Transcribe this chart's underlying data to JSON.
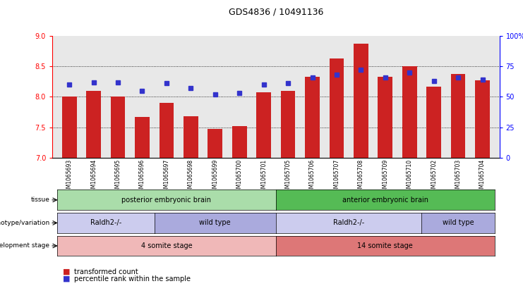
{
  "title": "GDS4836 / 10491136",
  "samples": [
    "GSM1065693",
    "GSM1065694",
    "GSM1065695",
    "GSM1065696",
    "GSM1065697",
    "GSM1065698",
    "GSM1065699",
    "GSM1065700",
    "GSM1065701",
    "GSM1065705",
    "GSM1065706",
    "GSM1065707",
    "GSM1065708",
    "GSM1065709",
    "GSM1065710",
    "GSM1065702",
    "GSM1065703",
    "GSM1065704"
  ],
  "bar_values": [
    8.0,
    8.1,
    8.0,
    7.67,
    7.9,
    7.68,
    7.48,
    7.52,
    8.08,
    8.1,
    8.33,
    8.63,
    8.87,
    8.33,
    8.5,
    8.17,
    8.37,
    8.27
  ],
  "percentile_values": [
    60,
    62,
    62,
    55,
    61,
    57,
    52,
    53,
    60,
    61,
    66,
    68,
    72,
    66,
    70,
    63,
    66,
    64
  ],
  "ylim_left": [
    7,
    9
  ],
  "ylim_right": [
    0,
    100
  ],
  "yticks_left": [
    7,
    7.5,
    8,
    8.5,
    9
  ],
  "yticks_right": [
    0,
    25,
    50,
    75,
    100
  ],
  "bar_color": "#cc2222",
  "dot_color": "#3333cc",
  "bar_bottom": 7.0,
  "tissue_groups": [
    {
      "label": "posterior embryonic brain",
      "start": 0,
      "end": 9,
      "color": "#aaddaa"
    },
    {
      "label": "anterior embryonic brain",
      "start": 9,
      "end": 18,
      "color": "#55bb55"
    }
  ],
  "genotype_groups": [
    {
      "label": "Raldh2-/-",
      "start": 0,
      "end": 4,
      "color": "#ccccee"
    },
    {
      "label": "wild type",
      "start": 4,
      "end": 9,
      "color": "#aaaadd"
    },
    {
      "label": "Raldh2-/-",
      "start": 9,
      "end": 15,
      "color": "#ccccee"
    },
    {
      "label": "wild type",
      "start": 15,
      "end": 18,
      "color": "#aaaadd"
    }
  ],
  "stage_groups": [
    {
      "label": "4 somite stage",
      "start": 0,
      "end": 9,
      "color": "#f0b8b8"
    },
    {
      "label": "14 somite stage",
      "start": 9,
      "end": 18,
      "color": "#dd7777"
    }
  ],
  "row_labels": [
    "tissue",
    "genotype/variation",
    "development stage"
  ],
  "legend_items": [
    {
      "color": "#cc2222",
      "label": "transformed count"
    },
    {
      "color": "#3333cc",
      "label": "percentile rank within the sample"
    }
  ],
  "chart_bg": "#e8e8e8"
}
